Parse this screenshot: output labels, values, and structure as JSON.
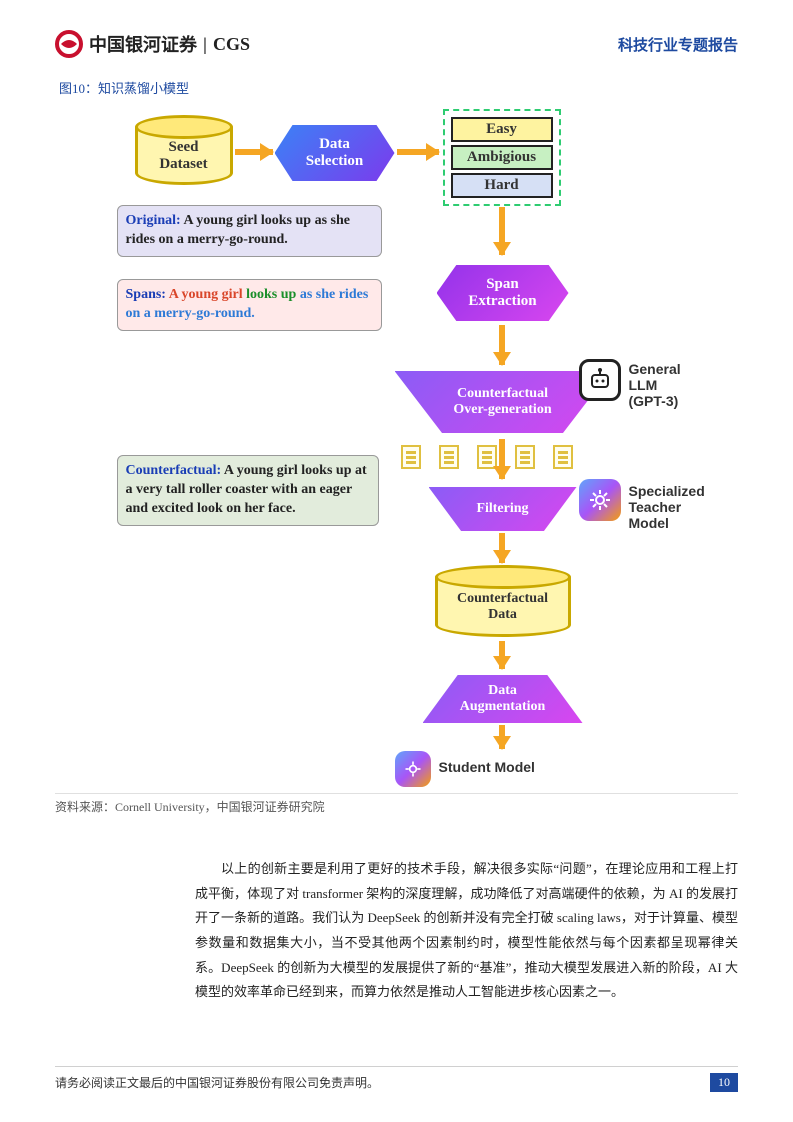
{
  "header": {
    "logo_cn": "中国银河证券",
    "logo_en": "CGS",
    "logo_divider": "|",
    "report_type": "科技行业专题报告",
    "report_type_color": "#1e4aa0"
  },
  "figure": {
    "label": "图10：知识蒸馏小模型",
    "label_color": "#1e4aa0",
    "source": "资料来源：Cornell University，中国银河证券研究院",
    "colors": {
      "cylinder_fill": "#fff6b0",
      "cylinder_stroke": "#c9a800",
      "hex_blue_grad_from": "#3b82f6",
      "hex_blue_grad_to": "#7c3aed",
      "hex_purple_grad_from": "#9333ea",
      "hex_purple_grad_to": "#d946ef",
      "trap_grad_from": "#8b5cf6",
      "trap_grad_to": "#d946ef",
      "arrow_orange": "#f5a623",
      "dashed_green": "#2ecc71",
      "stack_easy_bg": "#fef3a0",
      "stack_amb_bg": "#c7f0c2",
      "stack_hard_bg": "#d6e0f5",
      "tbox_original_bg": "#e4e2f5",
      "tbox_spans_bg": "#ffe9e9",
      "tbox_cf_bg": "#e2ecdc"
    },
    "nodes": {
      "seed_dataset": "Seed\nDataset",
      "data_selection": "Data\nSelection",
      "stack": {
        "easy": "Easy",
        "ambigious": "Ambigious",
        "hard": "Hard"
      },
      "span_extraction": "Span\nExtraction",
      "counterfactual_overgen": "Counterfactual\nOver-generation",
      "filtering": "Filtering",
      "counterfactual_data": "Counterfactual\nData",
      "data_augmentation": "Data\nAugmentation",
      "student_model": "Student Model",
      "general_llm": "General LLM\n(GPT-3)",
      "specialized_teacher": "Specialized\nTeacher Model"
    },
    "textboxes": {
      "original_prefix": "Original:",
      "original_text": "A young girl looks up as she rides on a merry-go-round.",
      "original_color_prefix": "#1a3db5",
      "spans_prefix": "Spans:",
      "spans_tokens": [
        {
          "t": "A young girl",
          "c": "#d9462a"
        },
        {
          "t": " looks up",
          "c": "#1a8f2a"
        },
        {
          "t": " as she rides on a ",
          "c": "#2e7ad6"
        },
        {
          "t": "merry-go-round",
          "c": "#2e7ad6"
        },
        {
          "t": ".",
          "c": "#2e7ad6"
        }
      ],
      "counterfactual_prefix": "Counterfactual:",
      "counterfactual_text": "A young girl looks up at a very tall roller coaster with an eager and excited look on her face."
    }
  },
  "body": {
    "paragraph": "以上的创新主要是利用了更好的技术手段，解决很多实际“问题”，在理论应用和工程上打成平衡，体现了对 transformer 架构的深度理解，成功降低了对高端硬件的依赖，为 AI 的发展打开了一条新的道路。我们认为 DeepSeek 的创新并没有完全打破 scaling laws，对于计算量、模型参数量和数据集大小，当不受其他两个因素制约时，模型性能依然与每个因素都呈现幂律关系。DeepSeek 的创新为大模型的发展提供了新的“基准”，推动大模型发展进入新的阶段，AI 大模型的效率革命已经到来，而算力依然是推动人工智能进步核心因素之一。"
  },
  "footer": {
    "disclaimer": "请务必阅读正文最后的中国银河证券股份有限公司免责声明。",
    "page_num": "10",
    "page_num_bg": "#1e4aa0"
  },
  "logo": {
    "swirl_color": "#c8102e"
  }
}
